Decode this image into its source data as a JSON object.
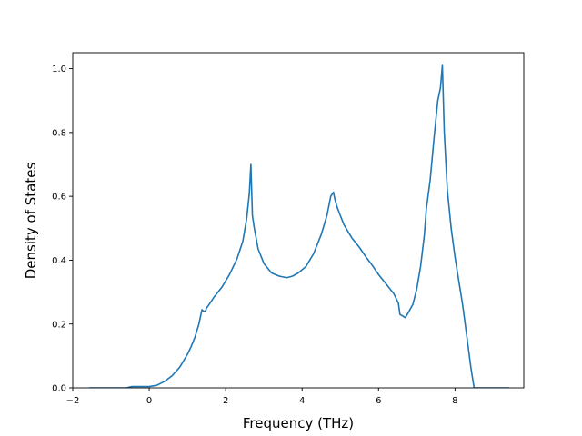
{
  "chart_data": {
    "type": "line",
    "title": "",
    "xlabel": "Frequency (THz)",
    "ylabel": "Density of States",
    "xlim": [
      -2.0,
      9.8
    ],
    "ylim": [
      0.0,
      1.05
    ],
    "xticks": [
      -2,
      0,
      2,
      4,
      6,
      8
    ],
    "xtick_labels": [
      "−2",
      "0",
      "2",
      "4",
      "6",
      "8"
    ],
    "yticks": [
      0.0,
      0.2,
      0.4,
      0.6,
      0.8,
      1.0
    ],
    "ytick_labels": [
      "0.0",
      "0.2",
      "0.4",
      "0.6",
      "0.8",
      "1.0"
    ],
    "grid": false,
    "legend": "none",
    "series": [
      {
        "color": "#1f77b4",
        "x": [
          -1.55,
          -0.6,
          -0.45,
          -0.2,
          0.0,
          0.2,
          0.4,
          0.6,
          0.8,
          1.0,
          1.1,
          1.2,
          1.3,
          1.38,
          1.42,
          1.47,
          1.5,
          1.55,
          1.7,
          1.9,
          2.1,
          2.3,
          2.45,
          2.55,
          2.62,
          2.66,
          2.7,
          2.75,
          2.85,
          3.0,
          3.2,
          3.4,
          3.6,
          3.75,
          3.9,
          4.1,
          4.3,
          4.5,
          4.65,
          4.75,
          4.82,
          4.86,
          4.92,
          5.0,
          5.1,
          5.3,
          5.5,
          5.7,
          5.8,
          6.0,
          6.2,
          6.4,
          6.52,
          6.56,
          6.62,
          6.7,
          6.8,
          6.9,
          7.0,
          7.1,
          7.2,
          7.25,
          7.35,
          7.45,
          7.55,
          7.62,
          7.67,
          7.72,
          7.8,
          7.9,
          8.0,
          8.1,
          8.2,
          8.3,
          8.42,
          8.5,
          8.6,
          9.0,
          9.4
        ],
        "y": [
          0.0,
          0.0,
          0.004,
          0.004,
          0.004,
          0.008,
          0.02,
          0.038,
          0.065,
          0.105,
          0.13,
          0.16,
          0.2,
          0.245,
          0.24,
          0.24,
          0.25,
          0.258,
          0.285,
          0.315,
          0.355,
          0.405,
          0.46,
          0.53,
          0.61,
          0.7,
          0.54,
          0.5,
          0.435,
          0.39,
          0.36,
          0.35,
          0.345,
          0.35,
          0.36,
          0.38,
          0.42,
          0.48,
          0.54,
          0.6,
          0.613,
          0.59,
          0.565,
          0.54,
          0.51,
          0.47,
          0.44,
          0.405,
          0.39,
          0.355,
          0.325,
          0.295,
          0.265,
          0.23,
          0.226,
          0.22,
          0.24,
          0.262,
          0.31,
          0.38,
          0.48,
          0.56,
          0.65,
          0.78,
          0.9,
          0.94,
          1.01,
          0.8,
          0.62,
          0.5,
          0.41,
          0.335,
          0.26,
          0.17,
          0.06,
          0.0,
          0.0,
          0.0,
          0.0
        ]
      }
    ]
  }
}
